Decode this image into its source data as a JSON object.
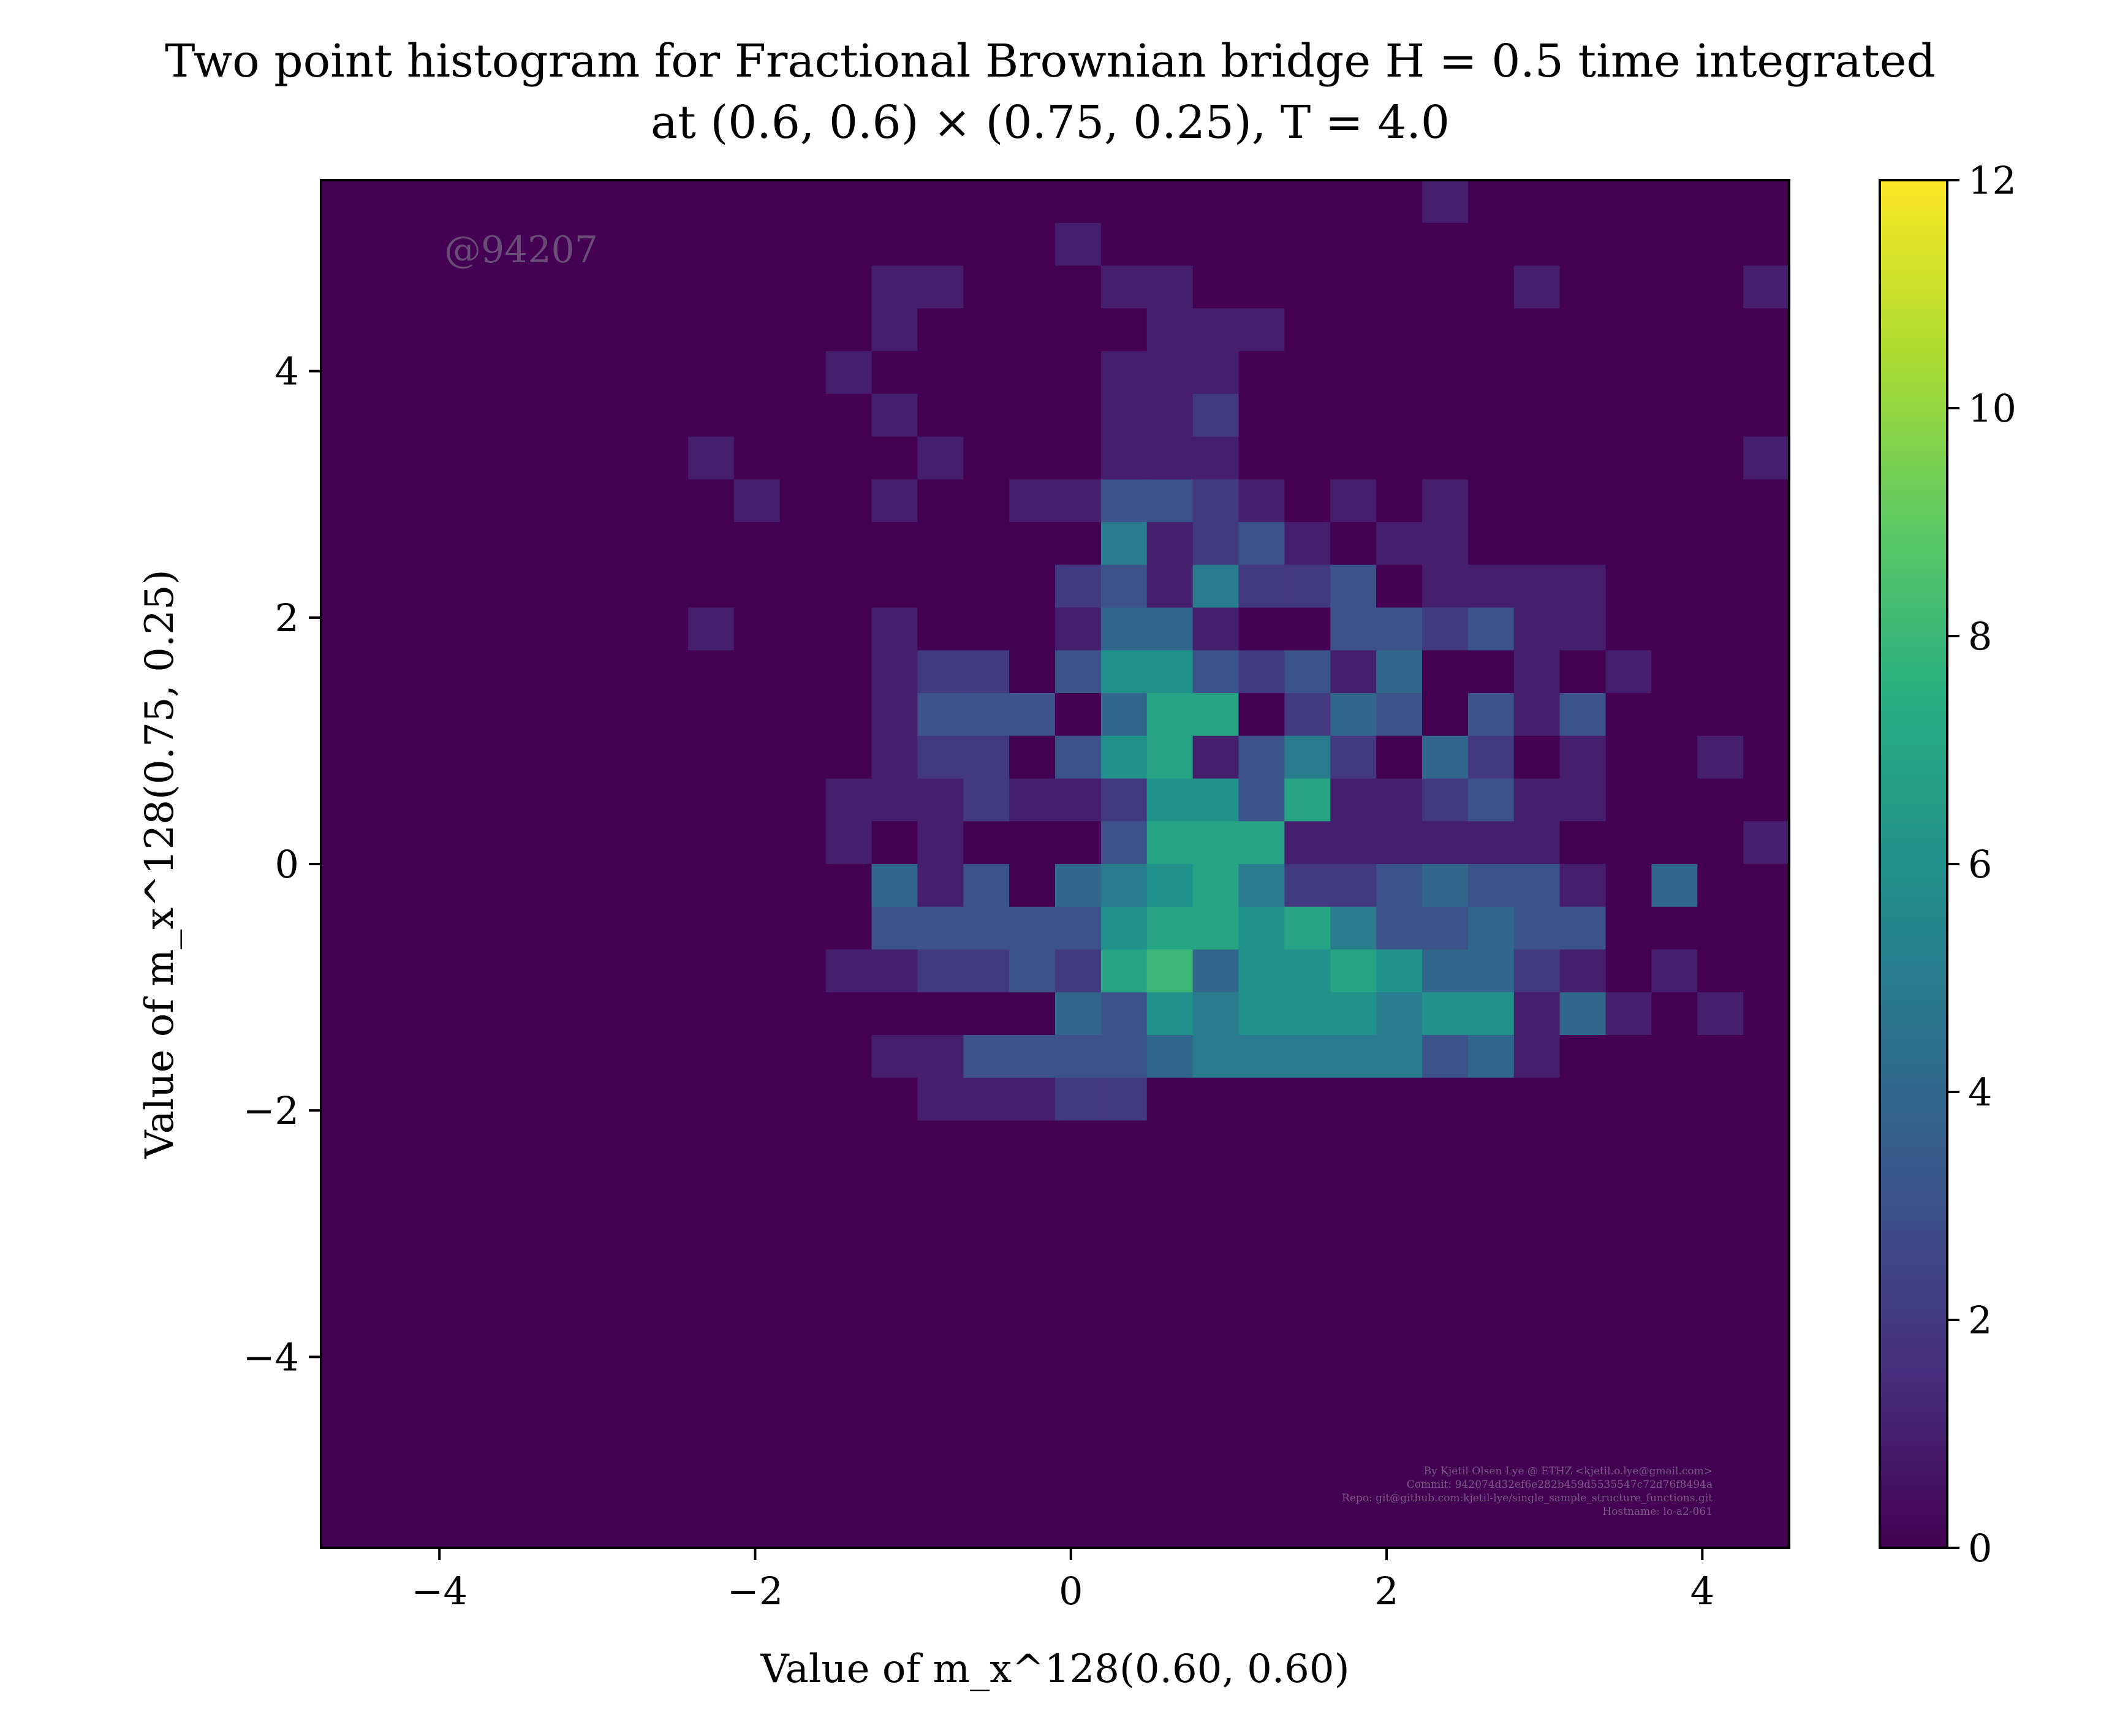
{
  "chart_data": {
    "type": "heatmap",
    "title_line1": "Two point histogram for Fractional Brownian bridge H = 0.5 time integrated",
    "title_line2": "at (0.6, 0.6) × (0.75, 0.25), T = 4.0",
    "xlabel": "Value of m_x^128(0.60, 0.60)",
    "ylabel": "Value of m_x^128(0.75, 0.25)",
    "xlim": [
      -4.75,
      4.55
    ],
    "ylim": [
      -5.55,
      5.55
    ],
    "xticks": [
      -4,
      -2,
      0,
      2,
      4
    ],
    "yticks": [
      -4,
      -2,
      0,
      2,
      4
    ],
    "xtick_labels": [
      "−4",
      "−2",
      "0",
      "2",
      "4"
    ],
    "ytick_labels": [
      "−4",
      "−2",
      "0",
      "2",
      "4"
    ],
    "colormap": "viridis",
    "vmin": 0,
    "vmax": 12,
    "colorbar_ticks": [
      0,
      2,
      4,
      6,
      8,
      10,
      12
    ],
    "colorbar_tick_labels": [
      "0",
      "2",
      "4",
      "6",
      "8",
      "10",
      "12"
    ],
    "bins_x": 32,
    "bins_y": 32,
    "counts_top_row_first": [
      "00000000000000000000000010000000",
      "00000000000000001000000000000000",
      "00000000000011000110000000100001",
      "00000000000010000011100000000000",
      "00000000000100000111000000000000",
      "00000000000010000112000000000000",
      "00000000100001000111000000000001",
      "00000000010010011332101010000000",
      "00000000000000000512310110000000",
      "00000000000000002315223011110000",
      "00000000100010001441003323110000",
      "00000000000012203663231400101000",
      "00000000000013330477024303130000",
      "00000000000012203671352042010010",
      "00000000000111211266371123110000",
      "00000000000101000377711111100001",
      "00000000000041304567522343310400",
      "00000000000033333677675334330000",
      "00000000000112232784667644210100",
      "00000000000000004365666566141010",
      "00000000000011333345555534100000",
      "00000000000001112200000000000000",
      "00000000000000000000000000000000",
      "00000000000000000000000000000000",
      "00000000000000000000000000000000",
      "00000000000000000000000000000000",
      "00000000000000000000000000000000",
      "00000000000000000000000000000000",
      "00000000000000000000000000000000",
      "00000000000000000000000000000000",
      "00000000000000000000000000000000",
      "00000000000000000000000000000000"
    ],
    "watermark": "@94207",
    "credit_lines": [
      "By Kjetil Olsen Lye @ ETHZ <kjetil.o.lye@gmail.com>",
      "Commit: 942074d32ef6e282b459d5535547c72d76f8494a",
      "Repo: git@github.com:kjetil-lye/single_sample_structure_functions.git",
      "Hostname: lo-a2-061"
    ]
  }
}
